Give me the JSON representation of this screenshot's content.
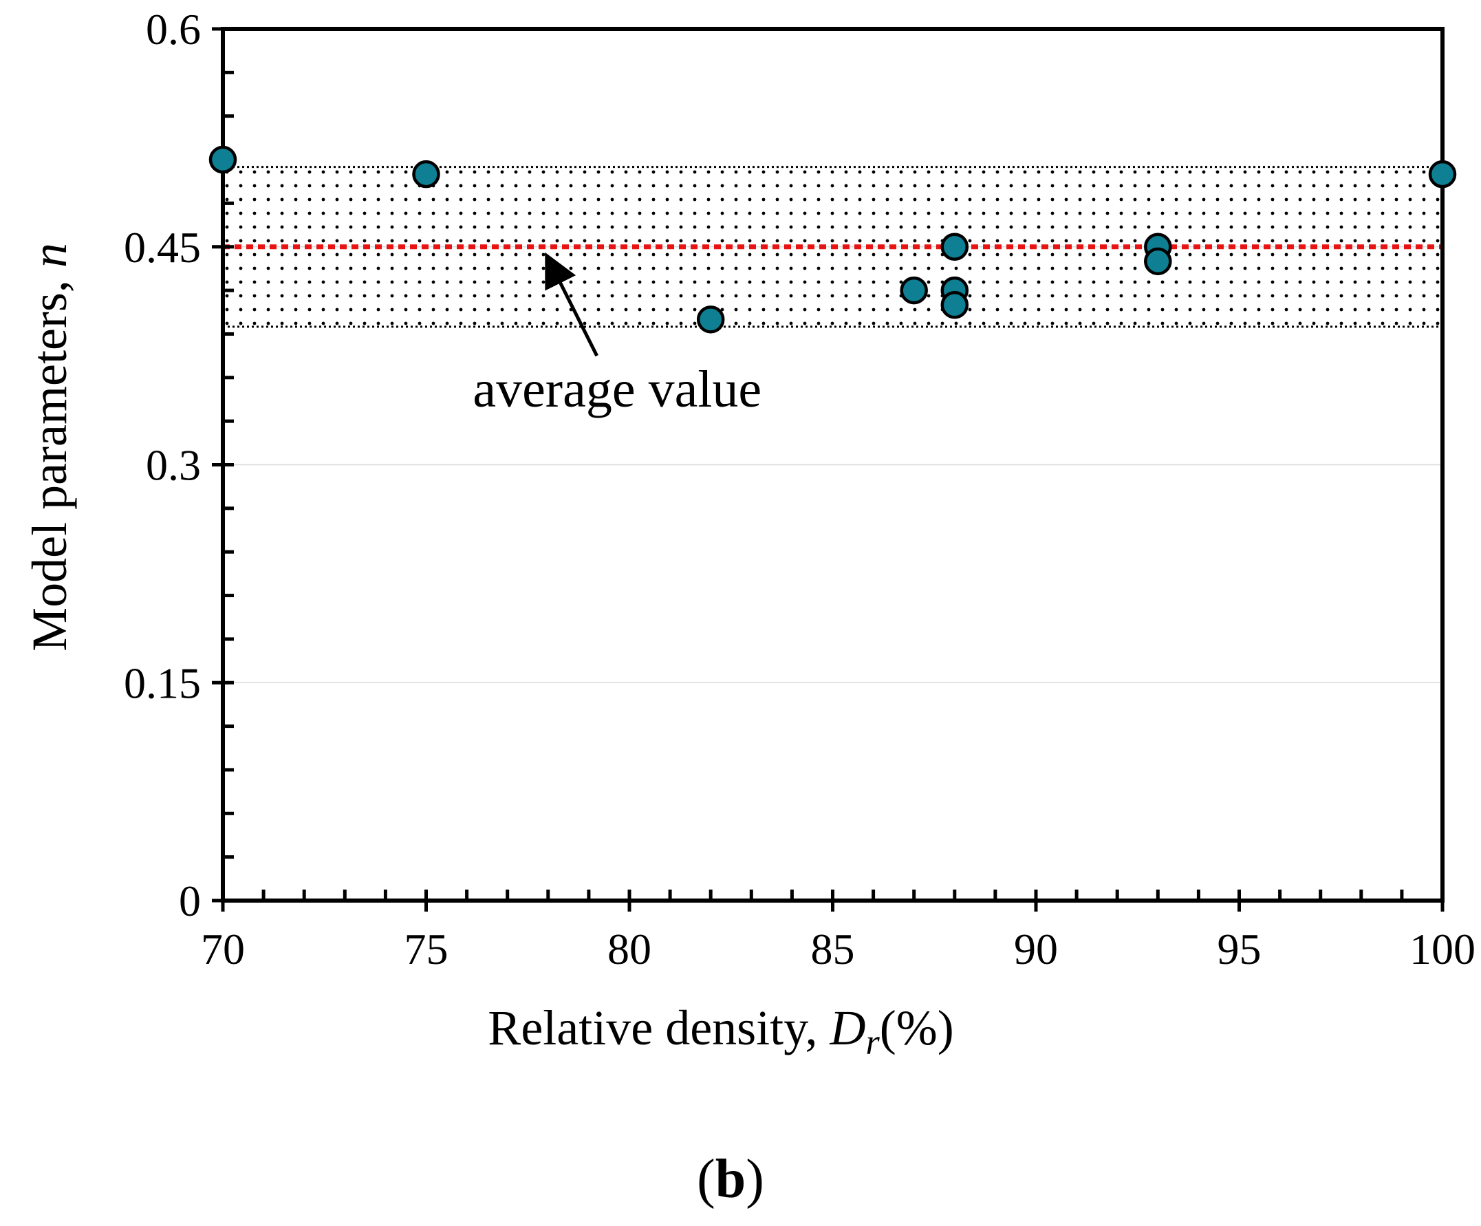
{
  "chart_data": {
    "type": "scatter",
    "title": "",
    "xlabel": {
      "prefix": "Relative density, ",
      "symbol": "D",
      "subscript": "r",
      "suffix": "(%)"
    },
    "ylabel": {
      "prefix": "Model parameters, ",
      "symbol": "n"
    },
    "xlim": [
      70,
      100
    ],
    "ylim": [
      0,
      0.6
    ],
    "x_ticks": [
      70,
      75,
      80,
      85,
      90,
      95,
      100
    ],
    "y_ticks": [
      0,
      0.15,
      0.3,
      0.45,
      0.6
    ],
    "x_tick_labels": [
      "70",
      "75",
      "80",
      "85",
      "90",
      "95",
      "100"
    ],
    "y_tick_labels": [
      "0",
      "0.15",
      "0.3",
      "0.45",
      "0.6"
    ],
    "x_minor_step": 1,
    "y_minor_step": 0.03,
    "gridlines": "horizontal",
    "series": [
      {
        "name": "n",
        "marker_color": "#0f7f94",
        "points": [
          {
            "x": 70,
            "y": 0.51
          },
          {
            "x": 75,
            "y": 0.5
          },
          {
            "x": 82,
            "y": 0.4
          },
          {
            "x": 87,
            "y": 0.42
          },
          {
            "x": 88,
            "y": 0.45
          },
          {
            "x": 88,
            "y": 0.42
          },
          {
            "x": 88,
            "y": 0.41
          },
          {
            "x": 93,
            "y": 0.45
          },
          {
            "x": 93,
            "y": 0.44
          },
          {
            "x": 100,
            "y": 0.5
          }
        ]
      }
    ],
    "average_value": 0.45,
    "average_line_color": "#e81313",
    "band": {
      "lower": 0.395,
      "upper": 0.505
    },
    "annotation": {
      "text": "average value",
      "arrow_from": {
        "x": 79.2,
        "y": 0.375
      },
      "arrow_to": {
        "x": 78.0,
        "y": 0.442
      }
    },
    "panel_label": {
      "open": "(",
      "letter": "b",
      "close": ")"
    }
  }
}
